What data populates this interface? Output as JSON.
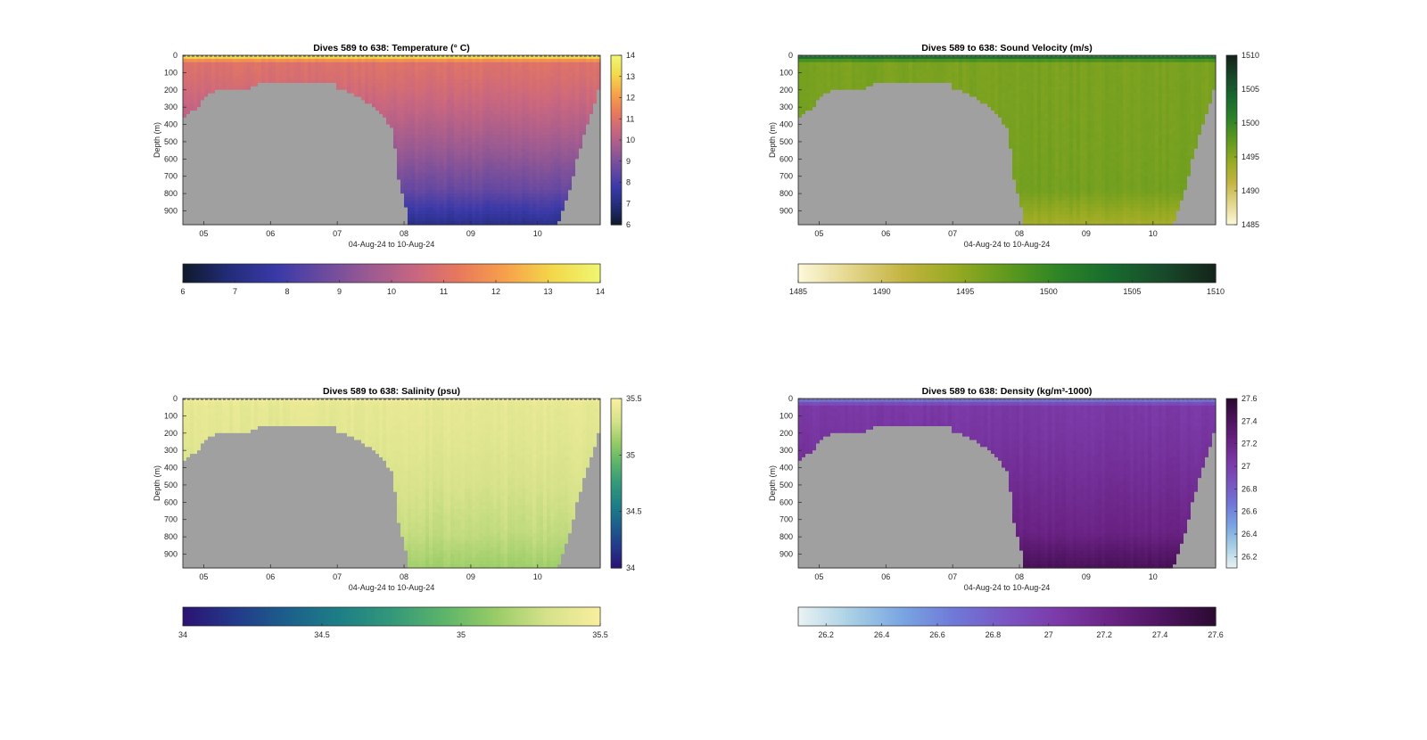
{
  "figure": {
    "background": "#ffffff",
    "mask_color": "#a0a0a0"
  },
  "chart_data": [
    {
      "type": "heatmap",
      "variable": "temperature",
      "title": "Dives 589 to 638: Temperature (° C)",
      "xlabel": "04-Aug-24 to 10-Aug-24",
      "ylabel": "Depth (m)",
      "x_ticks": [
        "05",
        "06",
        "07",
        "08",
        "09",
        "10"
      ],
      "y_ticks": [
        0,
        100,
        200,
        300,
        400,
        500,
        600,
        700,
        800,
        900
      ],
      "ylim": [
        0,
        980
      ],
      "clim": [
        6,
        14
      ],
      "colorbar_right_ticks": [
        "6",
        "7",
        "8",
        "9",
        "10",
        "11",
        "12",
        "13",
        "14"
      ],
      "colorbar_bottom_ticks": [
        "6",
        "7",
        "8",
        "9",
        "10",
        "11",
        "12",
        "13",
        "14"
      ],
      "colormap": [
        "#0f1a2e",
        "#232d7a",
        "#3a39a8",
        "#6a4aa0",
        "#9a5a92",
        "#c76681",
        "#e9795c",
        "#f7a24a",
        "#f3d84a",
        "#f0f570"
      ],
      "profile": {
        "surface": 14,
        "mixed_depth": 45,
        "mixed_value": 11.0,
        "deep_value": 7.7,
        "min_value": 7.2
      }
    },
    {
      "type": "heatmap",
      "variable": "sound_velocity",
      "title": "Dives 589 to 638: Sound Velocity (m/s)",
      "xlabel": "04-Aug-24 to 10-Aug-24",
      "ylabel": "Depth (m)",
      "x_ticks": [
        "05",
        "06",
        "07",
        "08",
        "09",
        "10"
      ],
      "y_ticks": [
        0,
        100,
        200,
        300,
        400,
        500,
        600,
        700,
        800,
        900
      ],
      "ylim": [
        0,
        980
      ],
      "clim": [
        1485,
        1510
      ],
      "colorbar_right_ticks": [
        "1485",
        "1490",
        "1495",
        "1500",
        "1505",
        "1510"
      ],
      "colorbar_bottom_ticks": [
        "1485",
        "1490",
        "1495",
        "1500",
        "1505",
        "1510"
      ],
      "colormap": [
        "#fcf8d8",
        "#e3d58a",
        "#c3b440",
        "#97aa22",
        "#5f9a1e",
        "#2e8426",
        "#186b2e",
        "#184a2a",
        "#13251a"
      ],
      "profile": {
        "surface": 1506,
        "mixed_depth": 45,
        "mixed_value": 1496,
        "deep_value": 1496.5,
        "min_value": 1493.5
      }
    },
    {
      "type": "heatmap",
      "variable": "salinity",
      "title": "Dives 589 to 638: Salinity (psu)",
      "xlabel": "04-Aug-24 to 10-Aug-24",
      "ylabel": "Depth (m)",
      "x_ticks": [
        "05",
        "06",
        "07",
        "08",
        "09",
        "10"
      ],
      "y_ticks": [
        0,
        100,
        200,
        300,
        400,
        500,
        600,
        700,
        800,
        900
      ],
      "ylim": [
        0,
        980
      ],
      "clim": [
        34,
        35.5
      ],
      "colorbar_right_ticks": [
        "34",
        "34.5",
        "35",
        "35.5"
      ],
      "colorbar_bottom_ticks": [
        "34",
        "34.5",
        "35",
        "35.5"
      ],
      "colormap": [
        "#2b1474",
        "#233a8a",
        "#1c5f8c",
        "#1d7f86",
        "#33987a",
        "#5cb46a",
        "#98cc66",
        "#d6e28a",
        "#f8ee9e"
      ],
      "profile": {
        "surface": 35.45,
        "mixed_depth": 45,
        "mixed_value": 35.4,
        "deep_value": 35.2,
        "min_value": 35.15
      }
    },
    {
      "type": "heatmap",
      "variable": "density",
      "title": "Dives 589 to 638: Density (kg/m³-1000)",
      "xlabel": "04-Aug-24 to 10-Aug-24",
      "ylabel": "Depth (m)",
      "x_ticks": [
        "05",
        "06",
        "07",
        "08",
        "09",
        "10"
      ],
      "y_ticks": [
        0,
        100,
        200,
        300,
        400,
        500,
        600,
        700,
        800,
        900
      ],
      "ylim": [
        0,
        980
      ],
      "clim": [
        26.1,
        27.6
      ],
      "colorbar_right_ticks": [
        "26.2",
        "26.4",
        "26.6",
        "26.8",
        "27",
        "27.2",
        "27.4",
        "27.6"
      ],
      "colorbar_bottom_ticks": [
        "26.2",
        "26.4",
        "26.6",
        "26.8",
        "27",
        "27.2",
        "27.4",
        "27.6"
      ],
      "colormap": [
        "#e7f2f3",
        "#a8cfe4",
        "#79a4e2",
        "#6f78d8",
        "#7a55c2",
        "#7b3aa8",
        "#6a2384",
        "#4e1460",
        "#2c0a32"
      ],
      "profile": {
        "surface": 26.55,
        "mixed_depth": 45,
        "mixed_value": 27.05,
        "deep_value": 27.3,
        "min_value": 27.45
      }
    }
  ]
}
